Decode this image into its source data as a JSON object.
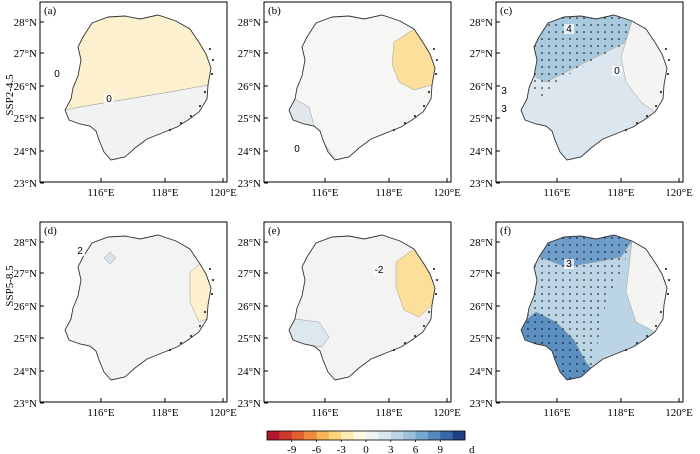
{
  "rows": [
    {
      "label": "SSP2-4.5",
      "panels": [
        "(a)",
        "(b)",
        "(c)"
      ]
    },
    {
      "label": "SSP5-8.5",
      "panels": [
        "(d)",
        "(e)",
        "(f)"
      ]
    }
  ],
  "axes": {
    "lat_ticks": [
      "28°N",
      "27°N",
      "26°N",
      "25°N",
      "24°N",
      "23°N"
    ],
    "lon_ticks": [
      "116°E",
      "118°E",
      "120°E"
    ]
  },
  "contour_labels": {
    "a": [
      "0",
      "0"
    ],
    "b": [
      "0"
    ],
    "c": [
      "4",
      "3",
      "3",
      "0"
    ],
    "d": [
      "2"
    ],
    "e": [
      "-2"
    ],
    "f": [
      "3"
    ]
  },
  "colorbar": {
    "ticks": [
      "-9",
      "-6",
      "-3",
      "0",
      "3",
      "6",
      "9"
    ],
    "unit": "d",
    "colors": [
      "#b2182b",
      "#cf3a2c",
      "#e0602f",
      "#ee8a3c",
      "#f6b357",
      "#fbd57e",
      "#fdedb5",
      "#fff9e0",
      "#eef3f6",
      "#d9e6ee",
      "#bcd5e4",
      "#9cc1da",
      "#78a8cd",
      "#5489bc",
      "#3866a6",
      "#213f86"
    ]
  },
  "fill_colors": {
    "a_main": "#fdf0cf",
    "a_south": "#f1f2f2",
    "b_main": "#f6f6f5",
    "b_east": "#fbdf9a",
    "b_west": "#dfe7ec",
    "c_main": "#dbe6ee",
    "c_north": "#a9c9de",
    "c_east": "#f4f4f3",
    "d_main": "#f3f3f3",
    "d_east": "#fdf0cf",
    "e_main": "#f3f3f3",
    "e_east": "#fbdf9a",
    "e_west": "#dde7ee",
    "f_main": "#bcd5e4",
    "f_south": "#5a8fc0",
    "f_north": "#6f9ecb",
    "f_east": "#f4f4f3"
  }
}
